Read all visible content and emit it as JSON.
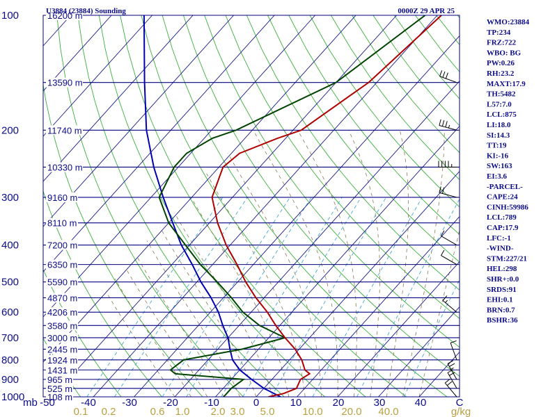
{
  "header": {
    "station": "U3884 (23884) Sounding",
    "time": "0000Z 29 APR 25"
  },
  "stats": [
    "WMO:23884",
    "TP:234",
    "FRZ:722",
    "WBO: BG",
    "PW:0.26",
    "RH:23.2",
    "MAXT:17.9",
    "TH:5482",
    "L57:7.0",
    "LCL:875",
    "LI:18.0",
    "SI:14.3",
    "TT:19",
    "KI:-16",
    "SW:163",
    "EI:3.6",
    "-PARCEL-",
    "CAPE:24",
    "CINH:59986",
    "LCL:789",
    "CAP:17.9",
    "LFC:-1",
    "-WIND-",
    "STM:227/21",
    "HEL:298",
    "SHR+:0.0",
    "SRDS:91",
    "EHI:0.1",
    "BRN:0.7",
    "BSHR:36"
  ],
  "colors": {
    "isobar": "#000080",
    "dry_adiabat": "#3ab03a",
    "isotherm": "#1a1a8c",
    "moist_adiabat": "#8a7a50",
    "mixing_ratio": "#45a8d0",
    "temperature": "#b00000",
    "dewpoint": "#004400",
    "parcel": "#0000b0"
  },
  "chart_data": {
    "type": "line",
    "title": "U3884 (23884) Sounding",
    "xlabel": "",
    "ylabel": "mb",
    "x_ticks": [
      "-50",
      "-40",
      "-30",
      "-20",
      "-10",
      "0",
      "10",
      "20",
      "30",
      "40",
      "C"
    ],
    "pressure_levels": [
      100,
      200,
      300,
      400,
      500,
      600,
      700,
      800,
      900,
      1000
    ],
    "pressure_labels": [
      "100",
      "200",
      "300",
      "400",
      "500",
      "600",
      "700",
      "800",
      "900",
      "1000"
    ],
    "height_labels": [
      {
        "p": 100,
        "text": "16200 m"
      },
      {
        "p": 150,
        "text": "13590 m"
      },
      {
        "p": 200,
        "text": "11740 m"
      },
      {
        "p": 250,
        "text": "10330 m"
      },
      {
        "p": 300,
        "text": "9160 m"
      },
      {
        "p": 350,
        "text": "8110 m"
      },
      {
        "p": 400,
        "text": "7200 m"
      },
      {
        "p": 450,
        "text": "6350 m"
      },
      {
        "p": 500,
        "text": "5590 m"
      },
      {
        "p": 550,
        "text": "4870 m"
      },
      {
        "p": 600,
        "text": "4206 m"
      },
      {
        "p": 650,
        "text": "3580 m"
      },
      {
        "p": 700,
        "text": "3000 m"
      },
      {
        "p": 750,
        "text": "2445 m"
      },
      {
        "p": 800,
        "text": "1924 m"
      },
      {
        "p": 850,
        "text": "1431 m"
      },
      {
        "p": 900,
        "text": "965 m"
      },
      {
        "p": 950,
        "text": "525 m"
      },
      {
        "p": 1000,
        "text": "108 m"
      }
    ],
    "mixing_ratio_labels": [
      "0.1",
      "0.2",
      "0.6",
      "1.0",
      "2.0",
      "3.0",
      "5.0",
      "10.0",
      "20.0",
      "40.0",
      "g/kg"
    ],
    "mixing_ratio_values": [
      0.1,
      0.2,
      0.6,
      1.0,
      2.0,
      3.0,
      5.0,
      10.0,
      20.0,
      40.0
    ],
    "temperature_profile": [
      {
        "p": 1000,
        "t": 3
      },
      {
        "p": 980,
        "t": 6
      },
      {
        "p": 950,
        "t": 8
      },
      {
        "p": 900,
        "t": 7
      },
      {
        "p": 870,
        "t": 8
      },
      {
        "p": 850,
        "t": 6
      },
      {
        "p": 800,
        "t": 3
      },
      {
        "p": 750,
        "t": -1
      },
      {
        "p": 700,
        "t": -6
      },
      {
        "p": 650,
        "t": -11
      },
      {
        "p": 600,
        "t": -16
      },
      {
        "p": 550,
        "t": -22
      },
      {
        "p": 500,
        "t": -28
      },
      {
        "p": 450,
        "t": -34
      },
      {
        "p": 400,
        "t": -41
      },
      {
        "p": 350,
        "t": -48
      },
      {
        "p": 300,
        "t": -55
      },
      {
        "p": 250,
        "t": -59
      },
      {
        "p": 230,
        "t": -58
      },
      {
        "p": 210,
        "t": -52
      },
      {
        "p": 200,
        "t": -48
      },
      {
        "p": 150,
        "t": -42
      },
      {
        "p": 100,
        "t": -39
      }
    ],
    "dewpoint_profile": [
      {
        "p": 1000,
        "td": -8
      },
      {
        "p": 950,
        "td": -8
      },
      {
        "p": 900,
        "td": -7
      },
      {
        "p": 870,
        "td": -25
      },
      {
        "p": 850,
        "td": -27
      },
      {
        "p": 800,
        "td": -26
      },
      {
        "p": 750,
        "td": -14
      },
      {
        "p": 700,
        "td": -6
      },
      {
        "p": 650,
        "td": -15
      },
      {
        "p": 600,
        "td": -22
      },
      {
        "p": 550,
        "td": -28
      },
      {
        "p": 500,
        "td": -35
      },
      {
        "p": 450,
        "td": -43
      },
      {
        "p": 400,
        "td": -51
      },
      {
        "p": 350,
        "td": -60
      },
      {
        "p": 300,
        "td": -68
      },
      {
        "p": 250,
        "td": -71
      },
      {
        "p": 230,
        "td": -71
      },
      {
        "p": 210,
        "td": -68
      },
      {
        "p": 200,
        "td": -64
      },
      {
        "p": 150,
        "td": -50
      },
      {
        "p": 100,
        "td": -43
      }
    ],
    "parcel_profile": [
      {
        "p": 1000,
        "t": 6
      },
      {
        "p": 950,
        "t": 0
      },
      {
        "p": 900,
        "t": -5
      },
      {
        "p": 850,
        "t": -10
      },
      {
        "p": 800,
        "t": -14
      },
      {
        "p": 750,
        "t": -17
      },
      {
        "p": 700,
        "t": -20
      },
      {
        "p": 650,
        "t": -24
      },
      {
        "p": 600,
        "t": -28
      },
      {
        "p": 550,
        "t": -33
      },
      {
        "p": 500,
        "t": -39
      },
      {
        "p": 450,
        "t": -45
      },
      {
        "p": 400,
        "t": -52
      },
      {
        "p": 350,
        "t": -59
      },
      {
        "p": 300,
        "t": -67
      },
      {
        "p": 250,
        "t": -76
      },
      {
        "p": 200,
        "t": -86
      },
      {
        "p": 150,
        "t": -97
      },
      {
        "p": 100,
        "t": -112
      }
    ],
    "wind_barbs": [
      {
        "p": 150,
        "dir": 290,
        "spd": 30
      },
      {
        "p": 200,
        "dir": 285,
        "spd": 25
      },
      {
        "p": 250,
        "dir": 270,
        "spd": 35
      },
      {
        "p": 300,
        "dir": 285,
        "spd": 20
      },
      {
        "p": 400,
        "dir": 300,
        "spd": 10
      },
      {
        "p": 450,
        "dir": 300,
        "spd": 10
      },
      {
        "p": 600,
        "dir": 310,
        "spd": 5
      },
      {
        "p": 800,
        "dir": 340,
        "spd": 10
      },
      {
        "p": 900,
        "dir": 330,
        "spd": 15
      },
      {
        "p": 950,
        "dir": 330,
        "spd": 20
      },
      {
        "p": 1000,
        "dir": 320,
        "spd": 20
      }
    ]
  }
}
